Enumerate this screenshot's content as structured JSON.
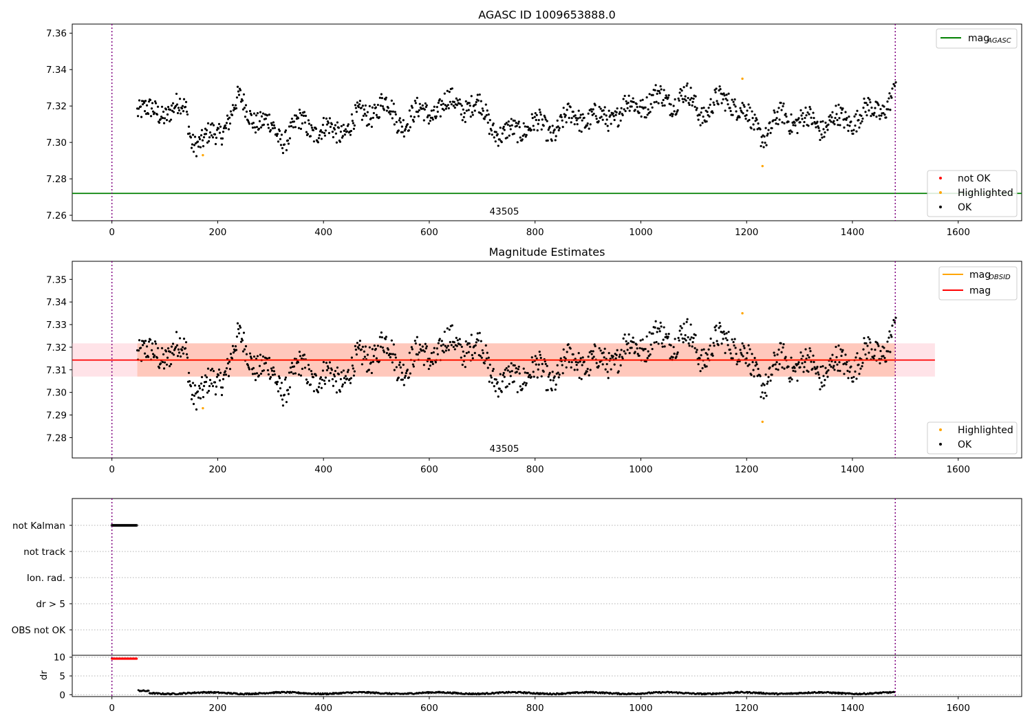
{
  "colors": {
    "ok": "#000000",
    "highlighted": "#ffa500",
    "not_ok": "#ff0000",
    "agasc_mag": "#008000",
    "obsid_mag": "#ffa500",
    "mean_mag": "#ff0000",
    "band_outer": "#ffc0cb",
    "band_inner": "#ffa07a",
    "obsid_boundary": "#800080",
    "grid": "#b0b0b0"
  },
  "chart_data": [
    {
      "type": "scatter",
      "title": "AGASC ID 1009653888.0",
      "xlim": [
        -75,
        1720
      ],
      "ylim": [
        7.257,
        7.365
      ],
      "xticks": [
        0,
        200,
        400,
        600,
        800,
        1000,
        1200,
        1400,
        1600
      ],
      "yticks": [
        "7.26",
        "7.28",
        "7.30",
        "7.32",
        "7.34",
        "7.36"
      ],
      "obsid_label": "43505",
      "obsid_boundaries": [
        0,
        1481
      ],
      "agasc_mag": 7.272,
      "legend_top": [
        {
          "label": "mag",
          "sub": "AGASC",
          "kind": "line",
          "color": "#008000"
        }
      ],
      "legend_bottom": [
        {
          "label": "not OK",
          "color": "#ff0000"
        },
        {
          "label": "Highlighted",
          "color": "#ffa500"
        },
        {
          "label": "OK",
          "color": "#000000"
        }
      ],
      "highlighted_points": [
        [
          172,
          7.293
        ],
        [
          1192,
          7.335
        ],
        [
          1230,
          7.287
        ]
      ],
      "last_points": [
        [
          1478,
          7.332
        ],
        [
          1480,
          7.331
        ],
        [
          1482,
          7.333
        ]
      ]
    },
    {
      "type": "scatter",
      "title": "Magnitude Estimates",
      "xlim": [
        -75,
        1720
      ],
      "ylim": [
        7.271,
        7.358
      ],
      "xticks": [
        0,
        200,
        400,
        600,
        800,
        1000,
        1200,
        1400,
        1600
      ],
      "yticks": [
        "7.28",
        "7.29",
        "7.30",
        "7.31",
        "7.32",
        "7.33",
        "7.34",
        "7.35"
      ],
      "obsid_label": "43505",
      "obsid_boundaries": [
        0,
        1481
      ],
      "mean_mag": 7.3143,
      "band_outer": [
        7.307,
        7.3217
      ],
      "band_inner": [
        7.307,
        7.3217
      ],
      "band_x": [
        -75,
        1556
      ],
      "band_inner_x": [
        48,
        1481
      ],
      "legend_top": [
        {
          "label": "mag",
          "sub": "OBSID",
          "kind": "line",
          "color": "#ffa500"
        },
        {
          "label": "mag",
          "sub": "",
          "kind": "line",
          "color": "#ff0000"
        }
      ],
      "legend_bottom": [
        {
          "label": "Highlighted",
          "color": "#ffa500"
        },
        {
          "label": "OK",
          "color": "#000000"
        }
      ],
      "highlighted_points": [
        [
          172,
          7.293
        ],
        [
          1192,
          7.335
        ],
        [
          1230,
          7.287
        ]
      ]
    },
    {
      "type": "scatter",
      "title": "",
      "xlim": [
        -75,
        1720
      ],
      "xticks": [
        0,
        200,
        400,
        600,
        800,
        1000,
        1200,
        1400,
        1600
      ],
      "flag_labels": [
        "not Kalman",
        "not track",
        "Ion. rad.",
        "dr > 5",
        "OBS not OK"
      ],
      "not_kalman_x": [
        0,
        48
      ],
      "dr_ylabel": "dr",
      "dr_yticks": [
        "0",
        "5",
        "10"
      ],
      "dr_ylim": [
        -0.5,
        10.5
      ],
      "dr_saturated_x": [
        0,
        48
      ],
      "dr_saturated_value": 9.6
    }
  ]
}
